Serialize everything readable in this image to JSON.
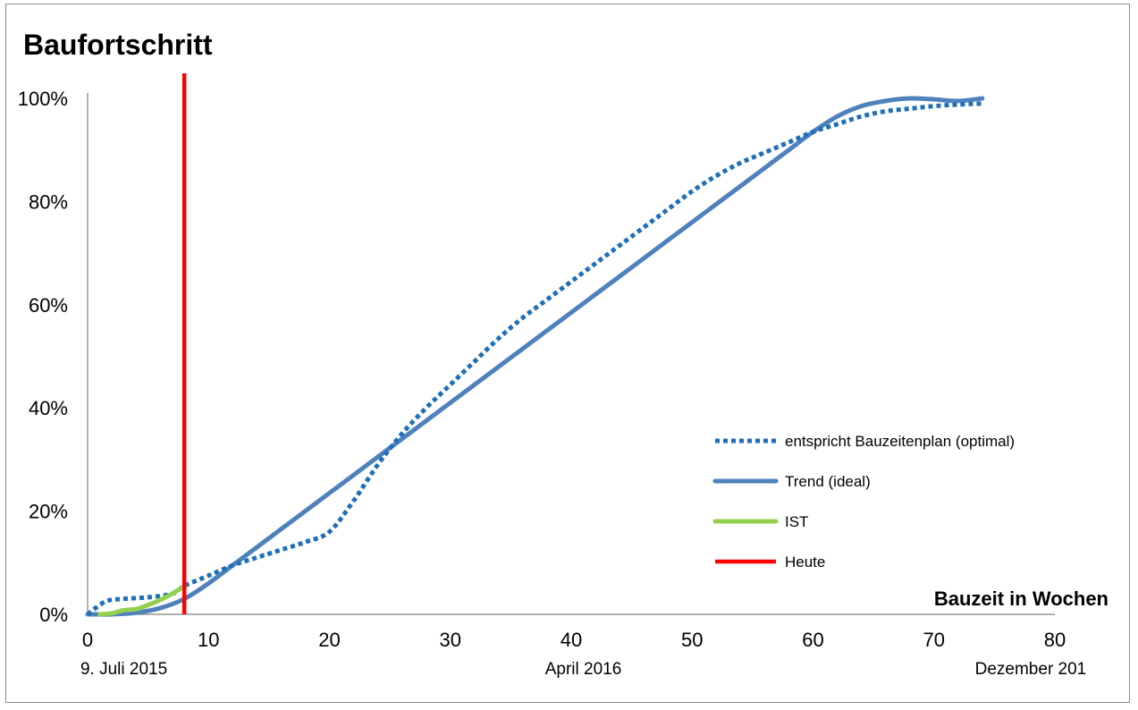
{
  "chart_data": {
    "type": "line",
    "title": "Baufortschritt",
    "xlabel": "Bauzeit in Wochen",
    "ylabel": "",
    "xlim": [
      0,
      80
    ],
    "ylim": [
      0,
      1
    ],
    "x_ticks": [
      0,
      10,
      20,
      30,
      40,
      50,
      60,
      70,
      80
    ],
    "x_tick_labels": [
      "0",
      "10",
      "20",
      "30",
      "40",
      "50",
      "60",
      "70",
      "80"
    ],
    "y_ticks": [
      0,
      0.2,
      0.4,
      0.6,
      0.8,
      1.0
    ],
    "y_tick_labels": [
      "0%",
      "20%",
      "40%",
      "60%",
      "80%",
      "100%"
    ],
    "date_labels": [
      {
        "x": 3,
        "text": "9. Juli 2015"
      },
      {
        "x": 41,
        "text": "April 2016"
      },
      {
        "x": 78,
        "text": "Dezember 201"
      }
    ],
    "grid": false,
    "legend_position": "right",
    "series": [
      {
        "name": "entspricht Bauzeitenplan (optimal)",
        "style": "dotted",
        "color": "#1f6fb8",
        "x": [
          0,
          1.5,
          3,
          5,
          7,
          8,
          10,
          12,
          14,
          16,
          18,
          20,
          22,
          24,
          26,
          28,
          30,
          32,
          34,
          36,
          38,
          40,
          42,
          44,
          46,
          48,
          50,
          52,
          54,
          56,
          58,
          60,
          62,
          64,
          66,
          68,
          70,
          72,
          74
        ],
        "values": [
          0,
          0.025,
          0.03,
          0.033,
          0.04,
          0.055,
          0.075,
          0.095,
          0.11,
          0.125,
          0.14,
          0.16,
          0.22,
          0.29,
          0.35,
          0.4,
          0.445,
          0.49,
          0.535,
          0.575,
          0.61,
          0.645,
          0.68,
          0.715,
          0.75,
          0.785,
          0.82,
          0.85,
          0.875,
          0.895,
          0.915,
          0.935,
          0.95,
          0.965,
          0.975,
          0.98,
          0.985,
          0.988,
          0.99
        ]
      },
      {
        "name": "Trend (ideal)",
        "style": "solid",
        "color": "#4f81bd",
        "x": [
          0,
          2,
          4,
          6,
          8,
          10,
          12,
          14,
          16,
          18,
          20,
          22,
          24,
          26,
          28,
          30,
          32,
          34,
          36,
          38,
          40,
          42,
          44,
          46,
          48,
          50,
          52,
          54,
          56,
          58,
          60,
          62,
          64,
          66,
          68,
          70,
          72,
          74
        ],
        "values": [
          0,
          0,
          0.003,
          0.012,
          0.03,
          0.06,
          0.095,
          0.13,
          0.165,
          0.2,
          0.235,
          0.27,
          0.305,
          0.34,
          0.375,
          0.41,
          0.445,
          0.48,
          0.515,
          0.55,
          0.585,
          0.62,
          0.655,
          0.69,
          0.725,
          0.76,
          0.795,
          0.83,
          0.865,
          0.9,
          0.935,
          0.965,
          0.985,
          0.995,
          1.0,
          0.998,
          0.995,
          1.0
        ]
      },
      {
        "name": "IST",
        "style": "solid",
        "color": "#92d050",
        "x": [
          1,
          2,
          3,
          4,
          5,
          6,
          7,
          8
        ],
        "values": [
          0,
          0.002,
          0.008,
          0.01,
          0.018,
          0.028,
          0.04,
          0.055
        ]
      },
      {
        "name": "Heute",
        "style": "vertical",
        "color": "#ff0000",
        "x": [
          8
        ]
      }
    ]
  }
}
